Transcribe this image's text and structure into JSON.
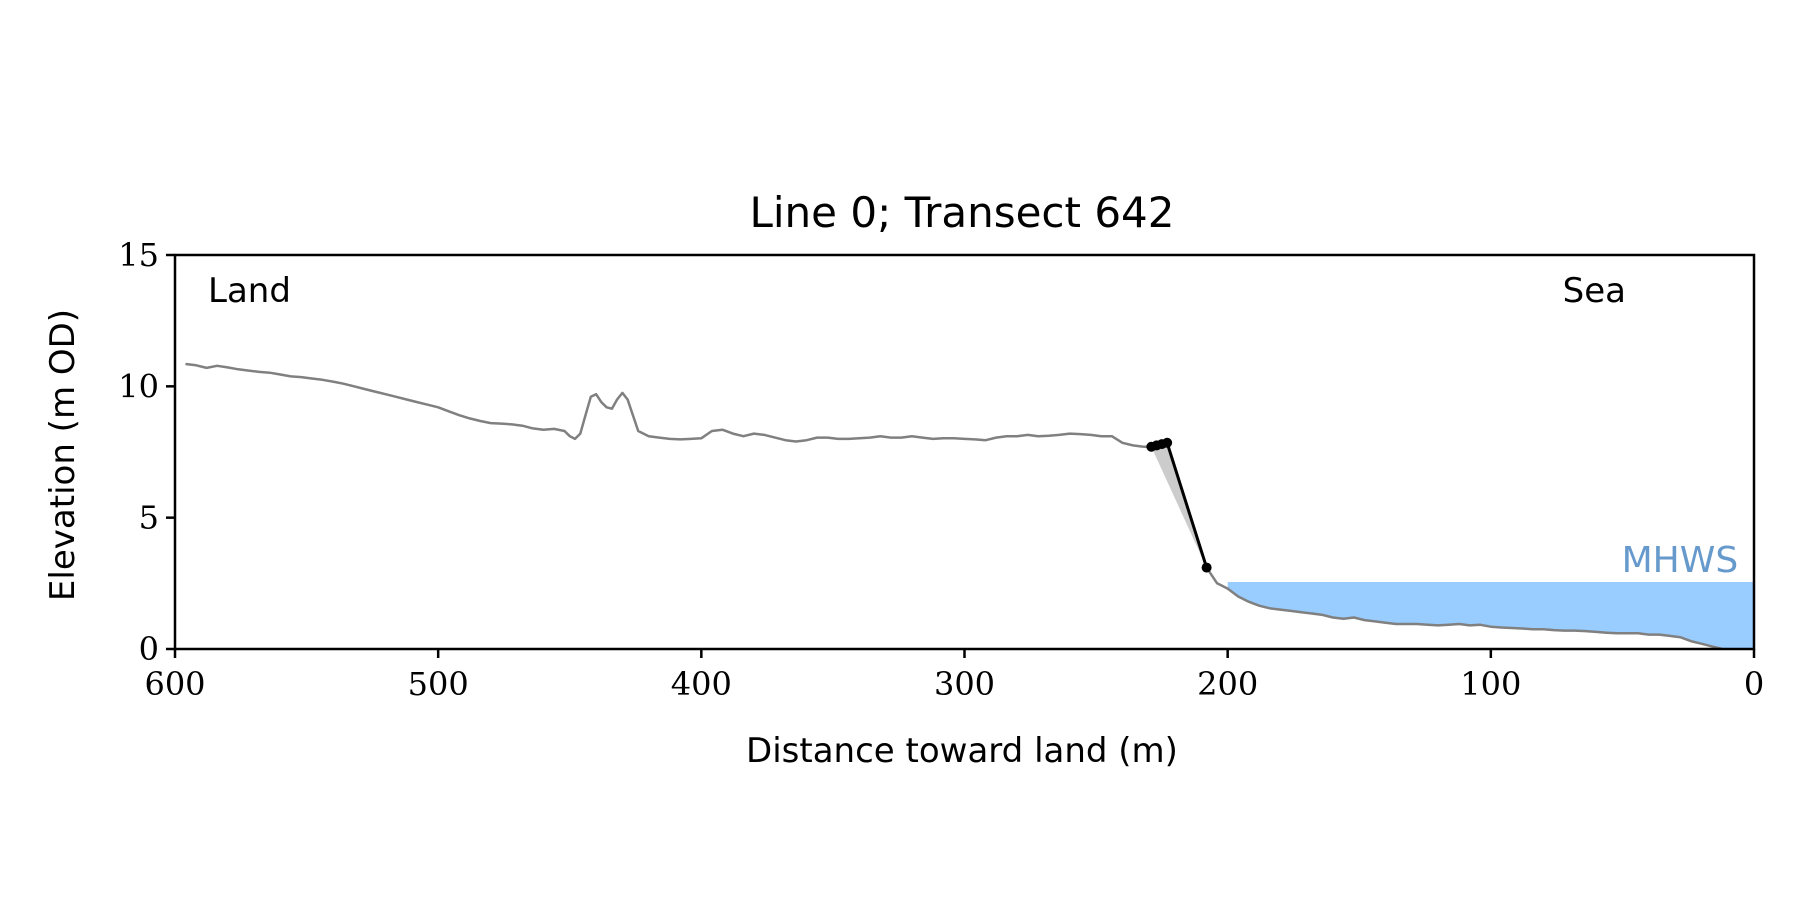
{
  "chart_data": {
    "type": "line",
    "title": "Line 0; Transect 642",
    "xlabel": "Distance toward land (m)",
    "ylabel": "Elevation (m OD)",
    "xlim": [
      600,
      0
    ],
    "ylim": [
      0,
      15
    ],
    "x_ticks": [
      600,
      500,
      400,
      300,
      200,
      100,
      0
    ],
    "y_ticks": [
      0,
      5,
      10,
      15
    ],
    "grid": false,
    "annotations": {
      "land": "Land",
      "sea": "Sea",
      "mhws": "MHWS"
    },
    "colors": {
      "profile": "#808080",
      "cliff": "#000000",
      "mhws_fill": "#99ccff",
      "mhws_text": "#6699cc",
      "cliff_fill": "#cccccc"
    },
    "mhws": {
      "elevation": 2.55,
      "x_from": 200,
      "x_to": 0
    },
    "profile": {
      "x": [
        596,
        592,
        588,
        584,
        580,
        576,
        572,
        568,
        564,
        560,
        556,
        552,
        548,
        544,
        540,
        536,
        532,
        528,
        524,
        520,
        516,
        512,
        508,
        504,
        500,
        496,
        492,
        488,
        484,
        480,
        476,
        472,
        468,
        464,
        460,
        456,
        452,
        450,
        448,
        446,
        444,
        442,
        440,
        438,
        436,
        434,
        432,
        430,
        428,
        426,
        424,
        420,
        416,
        412,
        408,
        404,
        400,
        396,
        392,
        388,
        384,
        380,
        376,
        372,
        368,
        364,
        360,
        356,
        352,
        348,
        344,
        340,
        336,
        332,
        328,
        324,
        320,
        316,
        312,
        308,
        304,
        300,
        296,
        292,
        288,
        284,
        280,
        276,
        272,
        268,
        264,
        260,
        256,
        252,
        248,
        244,
        240,
        236,
        232
      ],
      "y": [
        10.85,
        10.8,
        10.7,
        10.78,
        10.72,
        10.65,
        10.6,
        10.55,
        10.52,
        10.45,
        10.38,
        10.35,
        10.3,
        10.25,
        10.18,
        10.1,
        10.0,
        9.9,
        9.8,
        9.7,
        9.6,
        9.5,
        9.4,
        9.3,
        9.2,
        9.05,
        8.9,
        8.78,
        8.68,
        8.6,
        8.58,
        8.55,
        8.5,
        8.4,
        8.35,
        8.38,
        8.3,
        8.1,
        8.0,
        8.2,
        8.9,
        9.6,
        9.7,
        9.4,
        9.2,
        9.15,
        9.5,
        9.75,
        9.5,
        8.9,
        8.3,
        8.1,
        8.05,
        8.0,
        7.98,
        8.0,
        8.02,
        8.3,
        8.35,
        8.2,
        8.1,
        8.2,
        8.15,
        8.05,
        7.95,
        7.9,
        7.95,
        8.05,
        8.05,
        8.0,
        8.0,
        8.02,
        8.05,
        8.1,
        8.05,
        8.05,
        8.1,
        8.05,
        8.0,
        8.02,
        8.02,
        8.0,
        7.98,
        7.95,
        8.05,
        8.1,
        8.1,
        8.15,
        8.1,
        8.12,
        8.15,
        8.2,
        8.18,
        8.15,
        8.1,
        8.1,
        7.85,
        7.75,
        7.7
      ]
    },
    "cliff_points": {
      "x": [
        229,
        227,
        225,
        223,
        208
      ],
      "y": [
        7.7,
        7.75,
        7.8,
        7.85,
        3.1
      ]
    },
    "cliff_shading": {
      "x": [
        229,
        222,
        208
      ],
      "y": [
        7.7,
        7.7,
        3.1
      ]
    },
    "foreshore": {
      "x": [
        208,
        204,
        200,
        196,
        192,
        188,
        184,
        180,
        176,
        172,
        168,
        164,
        160,
        156,
        152,
        148,
        144,
        140,
        136,
        132,
        128,
        124,
        120,
        116,
        112,
        108,
        104,
        100,
        96,
        92,
        88,
        84,
        80,
        76,
        72,
        68,
        64,
        60,
        56,
        52,
        48,
        44,
        40,
        36,
        32,
        28,
        24,
        20,
        16,
        12
      ],
      "y": [
        3.1,
        2.5,
        2.3,
        2.0,
        1.8,
        1.65,
        1.55,
        1.5,
        1.45,
        1.4,
        1.35,
        1.3,
        1.2,
        1.15,
        1.2,
        1.1,
        1.05,
        1.0,
        0.95,
        0.95,
        0.95,
        0.92,
        0.9,
        0.92,
        0.95,
        0.9,
        0.92,
        0.85,
        0.82,
        0.8,
        0.78,
        0.75,
        0.75,
        0.72,
        0.7,
        0.7,
        0.68,
        0.65,
        0.62,
        0.6,
        0.6,
        0.6,
        0.55,
        0.55,
        0.5,
        0.45,
        0.3,
        0.2,
        0.1,
        0.0
      ]
    }
  }
}
